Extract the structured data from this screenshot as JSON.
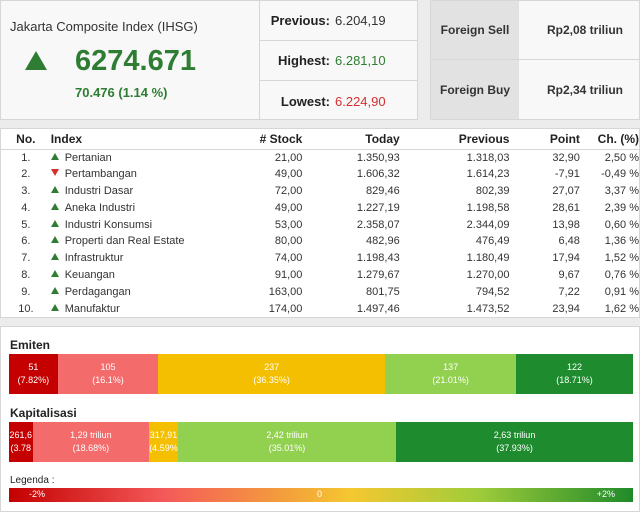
{
  "ihsg": {
    "title": "Jakarta Composite Index (IHSG)",
    "value": "6274.671",
    "change": "70.476 (1.14 %)",
    "direction": "up"
  },
  "levels": {
    "previous_label": "Previous:",
    "previous": "6.204,19",
    "highest_label": "Highest:",
    "highest": "6.281,10",
    "lowest_label": "Lowest:",
    "lowest": "6.224,90"
  },
  "foreign": {
    "sell_label": "Foreign Sell",
    "sell": "Rp2,08 triliun",
    "buy_label": "Foreign Buy",
    "buy": "Rp2,34 triliun"
  },
  "table": {
    "headers": [
      "No.",
      "Index",
      "# Stock",
      "Today",
      "Previous",
      "Point",
      "Ch. (%)"
    ],
    "rows": [
      {
        "no": "1.",
        "dir": "up",
        "name": "Pertanian",
        "stock": "21,00",
        "today": "1.350,93",
        "prev": "1.318,03",
        "point": "32,90",
        "ch": "2,50 %"
      },
      {
        "no": "2.",
        "dir": "down",
        "name": "Pertambangan",
        "stock": "49,00",
        "today": "1.606,32",
        "prev": "1.614,23",
        "point": "-7,91",
        "ch": "-0,49 %"
      },
      {
        "no": "3.",
        "dir": "up",
        "name": "Industri Dasar",
        "stock": "72,00",
        "today": "829,46",
        "prev": "802,39",
        "point": "27,07",
        "ch": "3,37 %"
      },
      {
        "no": "4.",
        "dir": "up",
        "name": "Aneka Industri",
        "stock": "49,00",
        "today": "1.227,19",
        "prev": "1.198,58",
        "point": "28,61",
        "ch": "2,39 %"
      },
      {
        "no": "5.",
        "dir": "up",
        "name": "Industri Konsumsi",
        "stock": "53,00",
        "today": "2.358,07",
        "prev": "2.344,09",
        "point": "13,98",
        "ch": "0,60 %"
      },
      {
        "no": "6.",
        "dir": "up",
        "name": "Properti dan Real Estate",
        "stock": "80,00",
        "today": "482,96",
        "prev": "476,49",
        "point": "6,48",
        "ch": "1,36 %"
      },
      {
        "no": "7.",
        "dir": "up",
        "name": "Infrastruktur",
        "stock": "74,00",
        "today": "1.198,43",
        "prev": "1.180,49",
        "point": "17,94",
        "ch": "1,52 %"
      },
      {
        "no": "8.",
        "dir": "up",
        "name": "Keuangan",
        "stock": "91,00",
        "today": "1.279,67",
        "prev": "1.270,00",
        "point": "9,67",
        "ch": "0,76 %"
      },
      {
        "no": "9.",
        "dir": "up",
        "name": "Perdagangan",
        "stock": "163,00",
        "today": "801,75",
        "prev": "794,52",
        "point": "7,22",
        "ch": "0,91 %"
      },
      {
        "no": "10.",
        "dir": "up",
        "name": "Manufaktur",
        "stock": "174,00",
        "today": "1.497,46",
        "prev": "1.473,52",
        "point": "23,94",
        "ch": "1,62 %"
      }
    ]
  },
  "emiten": {
    "title": "Emiten",
    "segments": [
      {
        "label": "51",
        "pct": "(7.82%)",
        "share": 7.82,
        "color": "#c40000"
      },
      {
        "label": "105",
        "pct": "(16.1%)",
        "share": 16.1,
        "color": "#f46b6b"
      },
      {
        "label": "237",
        "pct": "(36.35%)",
        "share": 36.35,
        "color": "#f4bf00"
      },
      {
        "label": "137",
        "pct": "(21.01%)",
        "share": 21.01,
        "color": "#92d050"
      },
      {
        "label": "122",
        "pct": "(18.71%)",
        "share": 18.71,
        "color": "#1e8c2e"
      }
    ]
  },
  "kapitalisasi": {
    "title": "Kapitalisasi",
    "segments": [
      {
        "label": "261,6",
        "pct": "(3.78",
        "share": 3.78,
        "color": "#c40000"
      },
      {
        "label": "1,29 triliun",
        "pct": "(18.68%)",
        "share": 18.68,
        "color": "#f46b6b"
      },
      {
        "label": "317,91",
        "pct": "(4.59%",
        "share": 4.59,
        "color": "#f4bf00"
      },
      {
        "label": "2,42 triliun",
        "pct": "(35.01%)",
        "share": 35.01,
        "color": "#92d050"
      },
      {
        "label": "2,63 triliun",
        "pct": "(37.93%)",
        "share": 37.93,
        "color": "#1e8c2e"
      }
    ]
  },
  "legend": {
    "title": "Legenda :",
    "min": "-2%",
    "mid": "0",
    "max": "+2%"
  },
  "colors": {
    "up": "#2e7d32",
    "down": "#d32f2f"
  }
}
